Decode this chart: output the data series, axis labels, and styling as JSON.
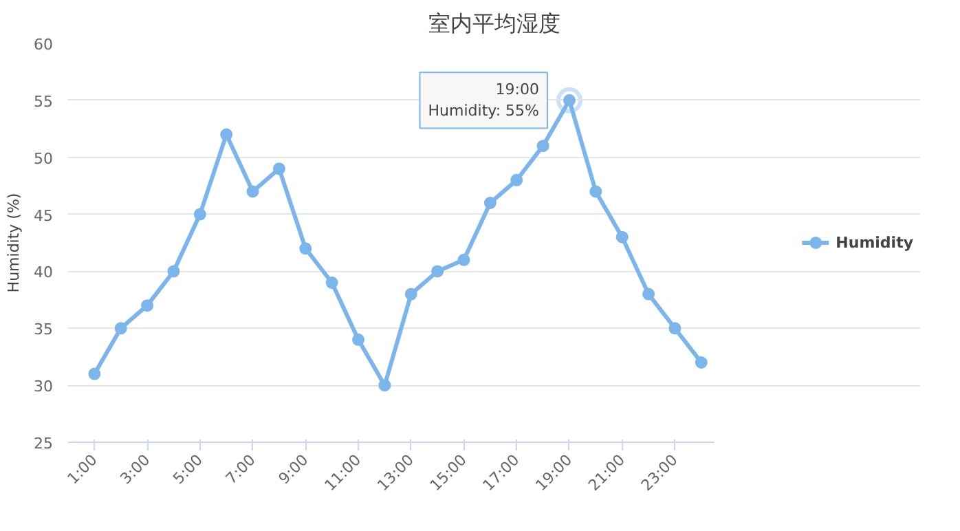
{
  "chart_data": {
    "type": "line",
    "title": "室内平均湿度",
    "ylabel": "Humidity (%)",
    "categories": [
      "1:00",
      null,
      "3:00",
      null,
      "5:00",
      null,
      "7:00",
      null,
      "9:00",
      null,
      "11:00",
      null,
      "13:00",
      null,
      "15:00",
      null,
      "17:00",
      null,
      "19:00",
      null,
      "21:00",
      null,
      "23:00",
      null
    ],
    "series": [
      {
        "name": "Humidity",
        "color": "#7cb5ec",
        "values": [
          31,
          35,
          37,
          40,
          45,
          52,
          47,
          49,
          42,
          39,
          34,
          30,
          38,
          40,
          41,
          46,
          48,
          51,
          55,
          47,
          43,
          38,
          35,
          32
        ]
      }
    ],
    "ylim": [
      25,
      60
    ],
    "yticks": [
      25,
      30,
      35,
      40,
      45,
      50,
      55,
      60
    ],
    "grid": "y",
    "legend": "right",
    "marker": "circle",
    "line_style": "solid",
    "annotations": [
      {
        "text": "19:00\nHumidity: 55%",
        "x": "19:00",
        "y": 55
      }
    ]
  }
}
